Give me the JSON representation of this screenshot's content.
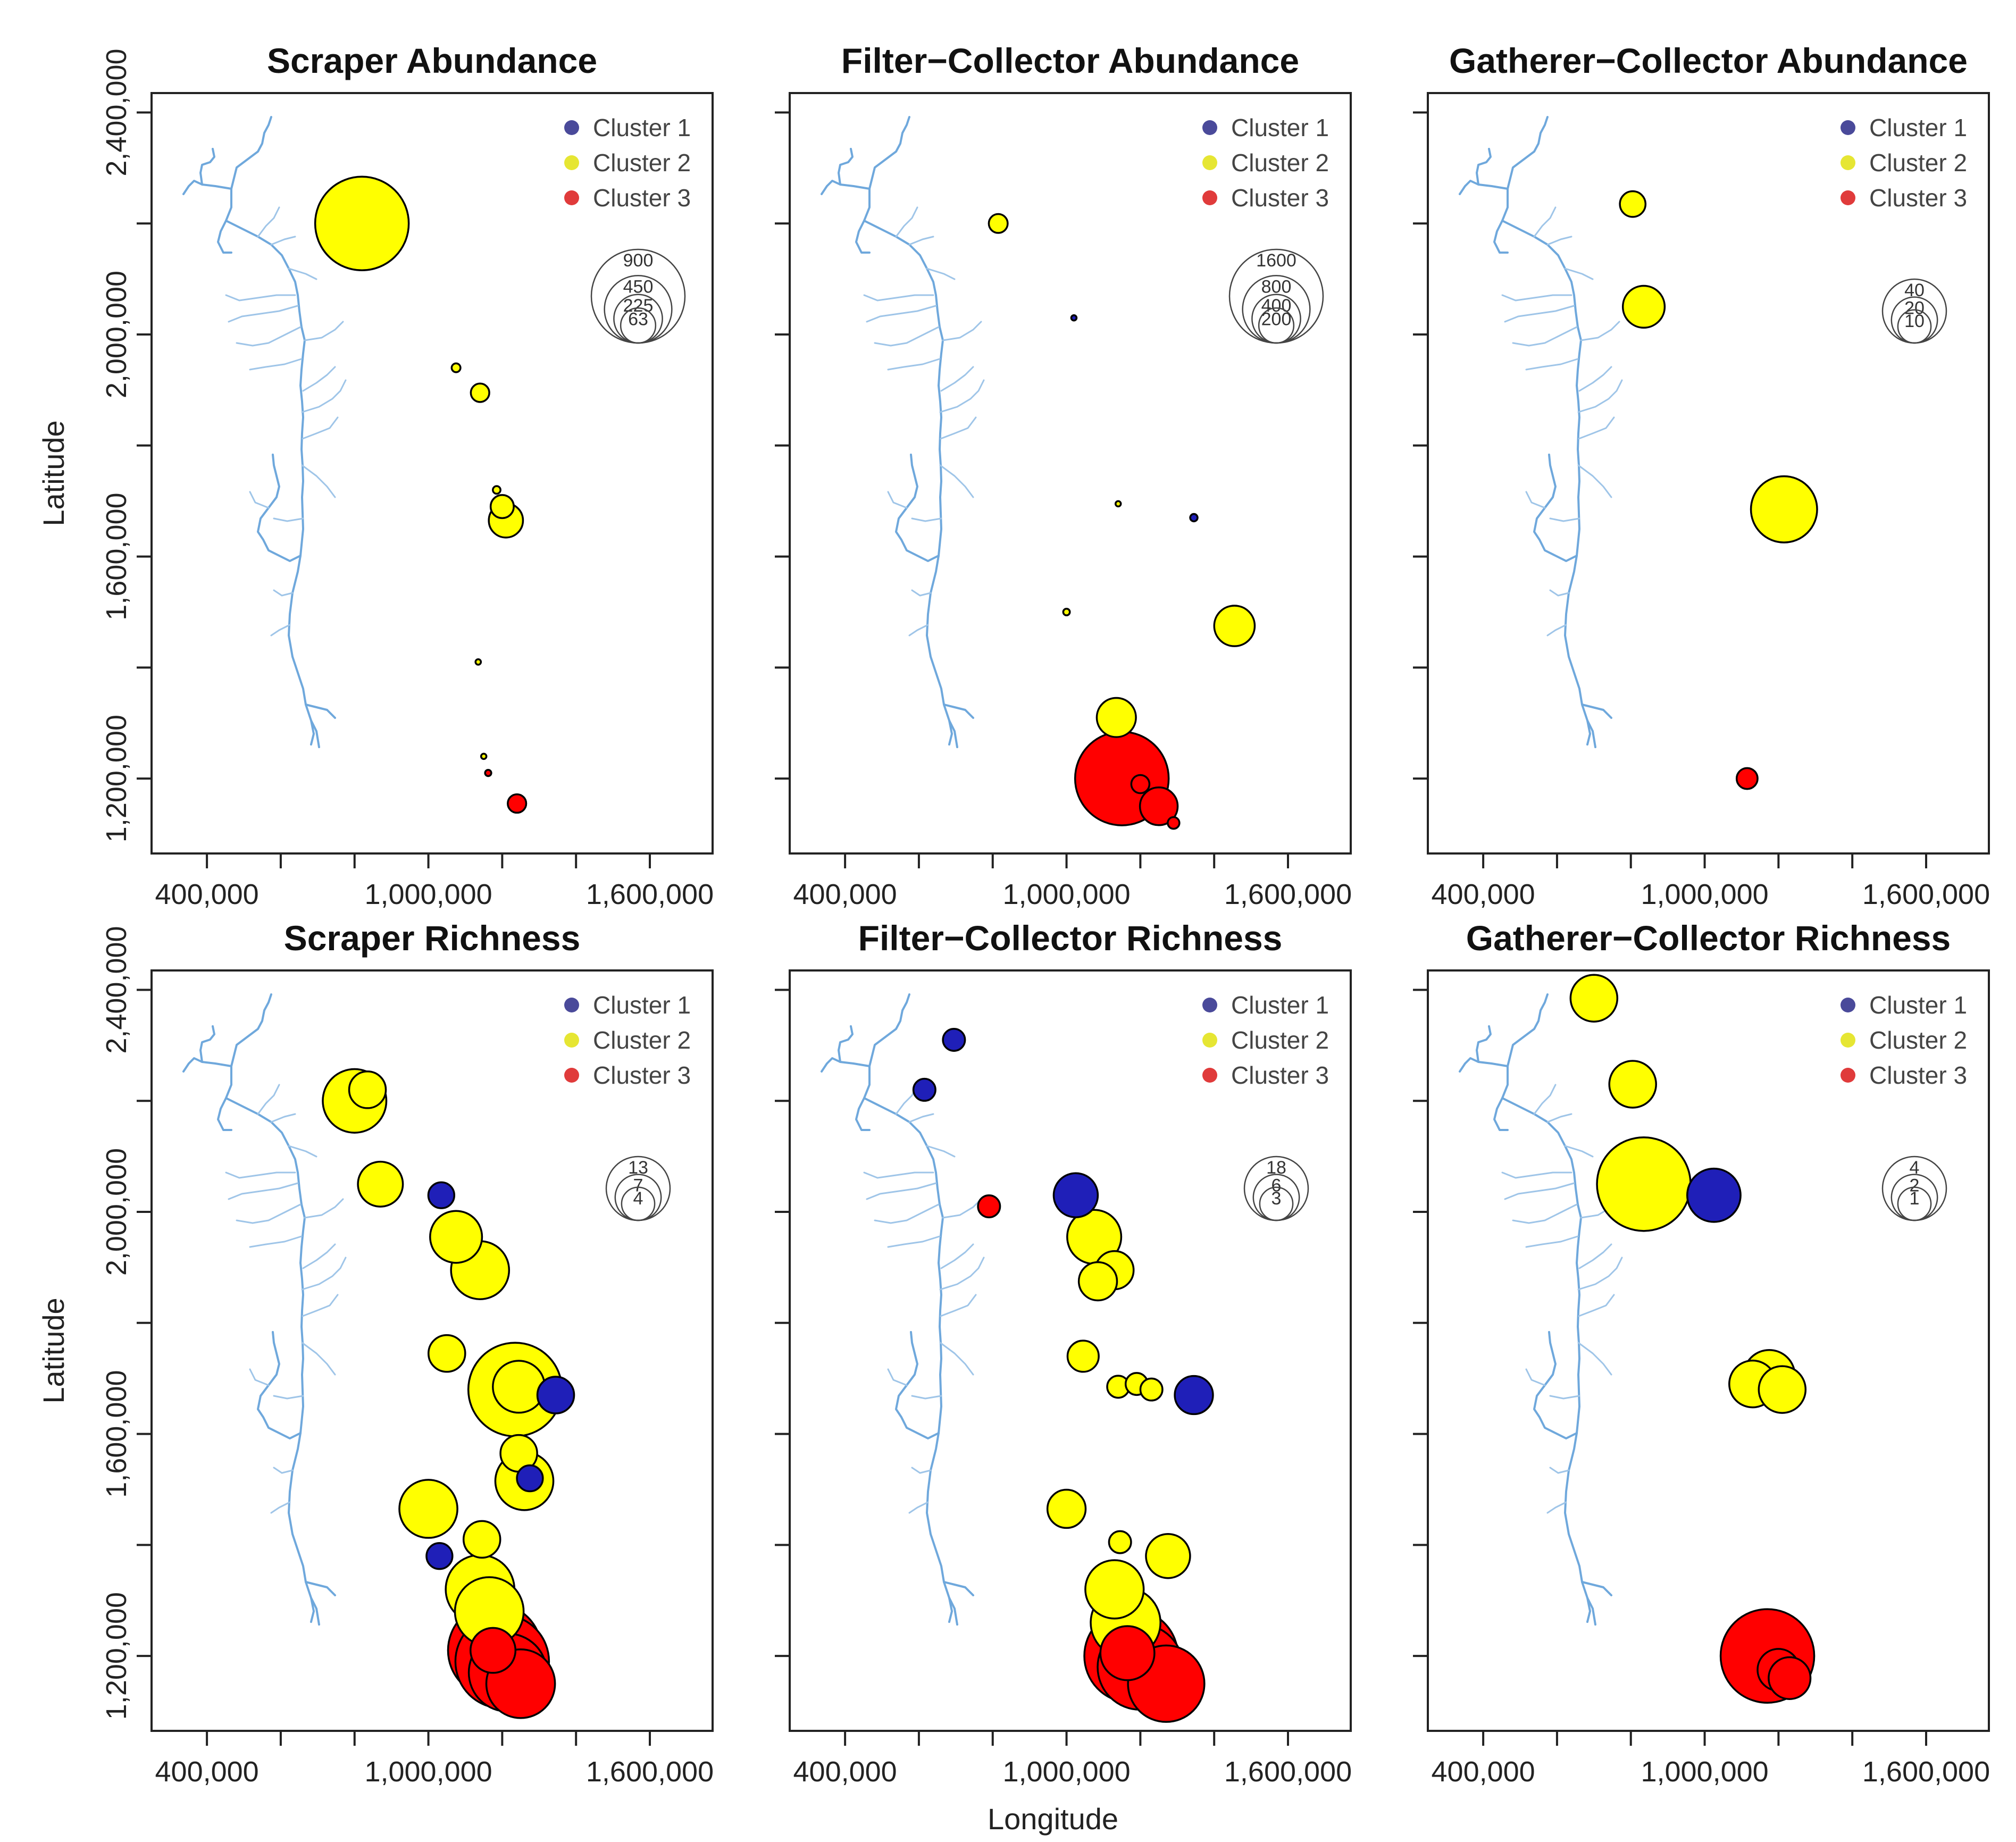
{
  "figure": {
    "xlabel": "Longitude",
    "ylabel": "Latitude"
  },
  "colors": {
    "cluster_1": "#1f1fb8",
    "cluster_2": "#ffff00",
    "cluster_3": "#ff0000",
    "legend_cluster_1": "#4a4a9a",
    "legend_cluster_2": "#e6e633",
    "legend_cluster_3": "#e03b3b",
    "river": "#6fa8dc"
  },
  "chart_data": [
    {
      "type": "scatter",
      "title": "Scraper Abundance",
      "xlabel": "",
      "ylabel": "Latitude",
      "xlim": [
        250000,
        1770000
      ],
      "ylim": [
        1065000,
        2435000
      ],
      "x_ticks": [
        "400,000",
        "1,000,000",
        "1,600,000"
      ],
      "y_ticks": [
        "1,200,000",
        "1,600,000",
        "2,000,000",
        "2,400,000"
      ],
      "legend": [
        "Cluster 1",
        "Cluster 2",
        "Cluster 3"
      ],
      "size_legend": [
        "900",
        "450",
        "225",
        "63"
      ],
      "size_max": 900,
      "points": [
        {
          "x": 820000,
          "y": 2200000,
          "size": 900,
          "cluster": 2
        },
        {
          "x": 1075000,
          "y": 1940000,
          "size": 8,
          "cluster": 2
        },
        {
          "x": 1140000,
          "y": 1895000,
          "size": 35,
          "cluster": 2
        },
        {
          "x": 1185000,
          "y": 1720000,
          "size": 6,
          "cluster": 2
        },
        {
          "x": 1200000,
          "y": 1690000,
          "size": 55,
          "cluster": 2
        },
        {
          "x": 1210000,
          "y": 1665000,
          "size": 120,
          "cluster": 2
        },
        {
          "x": 1135000,
          "y": 1410000,
          "size": 3,
          "cluster": 2
        },
        {
          "x": 1150000,
          "y": 1240000,
          "size": 2,
          "cluster": 2
        },
        {
          "x": 1162000,
          "y": 1210000,
          "size": 4,
          "cluster": 3
        },
        {
          "x": 1240000,
          "y": 1155000,
          "size": 35,
          "cluster": 3
        }
      ]
    },
    {
      "type": "scatter",
      "title": "Filter−Collector Abundance",
      "xlabel": "",
      "ylabel": "",
      "xlim": [
        250000,
        1770000
      ],
      "ylim": [
        1065000,
        2435000
      ],
      "x_ticks": [
        "400,000",
        "1,000,000",
        "1,600,000"
      ],
      "y_ticks": [],
      "legend": [
        "Cluster 1",
        "Cluster 2",
        "Cluster 3"
      ],
      "size_legend": [
        "1600",
        "800",
        "400",
        "200"
      ],
      "size_max": 1600,
      "points": [
        {
          "x": 815000,
          "y": 2200000,
          "size": 65,
          "cluster": 2
        },
        {
          "x": 1020000,
          "y": 2030000,
          "size": 4,
          "cluster": 1
        },
        {
          "x": 1345000,
          "y": 1670000,
          "size": 10,
          "cluster": 1
        },
        {
          "x": 1140000,
          "y": 1695000,
          "size": 3,
          "cluster": 2
        },
        {
          "x": 1000000,
          "y": 1500000,
          "size": 8,
          "cluster": 2
        },
        {
          "x": 1455000,
          "y": 1475000,
          "size": 300,
          "cluster": 2
        },
        {
          "x": 1135000,
          "y": 1310000,
          "size": 280,
          "cluster": 2
        },
        {
          "x": 1150000,
          "y": 1200000,
          "size": 1600,
          "cluster": 3
        },
        {
          "x": 1200000,
          "y": 1190000,
          "size": 60,
          "cluster": 3
        },
        {
          "x": 1250000,
          "y": 1150000,
          "size": 260,
          "cluster": 3
        },
        {
          "x": 1290000,
          "y": 1120000,
          "size": 25,
          "cluster": 3
        }
      ]
    },
    {
      "type": "scatter",
      "title": "Gatherer−Collector Abundance",
      "xlabel": "",
      "ylabel": "",
      "xlim": [
        250000,
        1770000
      ],
      "ylim": [
        1065000,
        2435000
      ],
      "x_ticks": [
        "400,000",
        "1,000,000",
        "1,600,000"
      ],
      "y_ticks": [],
      "legend": [
        "Cluster 1",
        "Cluster 2",
        "Cluster 3"
      ],
      "size_legend": [
        "40",
        "20",
        "10"
      ],
      "size_max": 40,
      "points": [
        {
          "x": 805000,
          "y": 2235000,
          "size": 3,
          "cluster": 2
        },
        {
          "x": 835000,
          "y": 2050000,
          "size": 8,
          "cluster": 2
        },
        {
          "x": 1215000,
          "y": 1685000,
          "size": 20,
          "cluster": 2
        },
        {
          "x": 1115000,
          "y": 1200000,
          "size": 2,
          "cluster": 3
        }
      ]
    },
    {
      "type": "scatter",
      "title": "Scraper Richness",
      "xlabel": "",
      "ylabel": "Latitude",
      "xlim": [
        250000,
        1770000
      ],
      "ylim": [
        1065000,
        2435000
      ],
      "x_ticks": [
        "400,000",
        "1,000,000",
        "1,600,000"
      ],
      "y_ticks": [
        "1,200,000",
        "1,600,000",
        "2,000,000",
        "2,400,000"
      ],
      "legend": [
        "Cluster 1",
        "Cluster 2",
        "Cluster 3"
      ],
      "size_legend": [
        "13",
        "7",
        "4"
      ],
      "size_max": 13,
      "points": [
        {
          "x": 800000,
          "y": 2200000,
          "size": 6,
          "cluster": 2
        },
        {
          "x": 835000,
          "y": 2220000,
          "size": 2,
          "cluster": 2
        },
        {
          "x": 870000,
          "y": 2050000,
          "size": 3,
          "cluster": 2
        },
        {
          "x": 1035000,
          "y": 2030000,
          "size": 1,
          "cluster": 1
        },
        {
          "x": 1075000,
          "y": 1955000,
          "size": 4,
          "cluster": 2
        },
        {
          "x": 1140000,
          "y": 1895000,
          "size": 5,
          "cluster": 2
        },
        {
          "x": 1050000,
          "y": 1745000,
          "size": 2,
          "cluster": 2
        },
        {
          "x": 1235000,
          "y": 1680000,
          "size": 13,
          "cluster": 2
        },
        {
          "x": 1245000,
          "y": 1685000,
          "size": 4,
          "cluster": 2
        },
        {
          "x": 1345000,
          "y": 1670000,
          "size": 2,
          "cluster": 1
        },
        {
          "x": 1245000,
          "y": 1565000,
          "size": 2,
          "cluster": 2
        },
        {
          "x": 1260000,
          "y": 1515000,
          "size": 5,
          "cluster": 2
        },
        {
          "x": 1275000,
          "y": 1520000,
          "size": 1,
          "cluster": 1
        },
        {
          "x": 1000000,
          "y": 1465000,
          "size": 5,
          "cluster": 2
        },
        {
          "x": 1145000,
          "y": 1410000,
          "size": 2,
          "cluster": 2
        },
        {
          "x": 1030000,
          "y": 1380000,
          "size": 1,
          "cluster": 1
        },
        {
          "x": 1140000,
          "y": 1320000,
          "size": 7,
          "cluster": 2
        },
        {
          "x": 1165000,
          "y": 1280000,
          "size": 7,
          "cluster": 2
        },
        {
          "x": 1180000,
          "y": 1210000,
          "size": 13,
          "cluster": 3
        },
        {
          "x": 1200000,
          "y": 1190000,
          "size": 13,
          "cluster": 3
        },
        {
          "x": 1215000,
          "y": 1170000,
          "size": 9,
          "cluster": 3
        },
        {
          "x": 1250000,
          "y": 1150000,
          "size": 7,
          "cluster": 3
        },
        {
          "x": 1175000,
          "y": 1210000,
          "size": 3,
          "cluster": 3
        }
      ]
    },
    {
      "type": "scatter",
      "title": "Filter−Collector Richness",
      "xlabel": "",
      "ylabel": "",
      "xlim": [
        250000,
        1770000
      ],
      "ylim": [
        1065000,
        2435000
      ],
      "x_ticks": [
        "400,000",
        "1,000,000",
        "1,600,000"
      ],
      "y_ticks": [],
      "legend": [
        "Cluster 1",
        "Cluster 2",
        "Cluster 3"
      ],
      "size_legend": [
        "18",
        "6",
        "3"
      ],
      "size_max": 18,
      "points": [
        {
          "x": 615000,
          "y": 2220000,
          "size": 1,
          "cluster": 1
        },
        {
          "x": 695000,
          "y": 2310000,
          "size": 1,
          "cluster": 1
        },
        {
          "x": 790000,
          "y": 2010000,
          "size": 1,
          "cluster": 3
        },
        {
          "x": 1025000,
          "y": 2030000,
          "size": 4,
          "cluster": 1
        },
        {
          "x": 1075000,
          "y": 1955000,
          "size": 6,
          "cluster": 2
        },
        {
          "x": 1130000,
          "y": 1895000,
          "size": 3,
          "cluster": 2
        },
        {
          "x": 1085000,
          "y": 1875000,
          "size": 3,
          "cluster": 2
        },
        {
          "x": 1045000,
          "y": 1740000,
          "size": 2,
          "cluster": 2
        },
        {
          "x": 1140000,
          "y": 1685000,
          "size": 1,
          "cluster": 2
        },
        {
          "x": 1190000,
          "y": 1690000,
          "size": 1,
          "cluster": 2
        },
        {
          "x": 1230000,
          "y": 1680000,
          "size": 1,
          "cluster": 2
        },
        {
          "x": 1345000,
          "y": 1670000,
          "size": 3,
          "cluster": 1
        },
        {
          "x": 1000000,
          "y": 1465000,
          "size": 3,
          "cluster": 2
        },
        {
          "x": 1145000,
          "y": 1405000,
          "size": 1,
          "cluster": 2
        },
        {
          "x": 1275000,
          "y": 1380000,
          "size": 4,
          "cluster": 2
        },
        {
          "x": 1130000,
          "y": 1320000,
          "size": 7,
          "cluster": 2
        },
        {
          "x": 1160000,
          "y": 1260000,
          "size": 10,
          "cluster": 2
        },
        {
          "x": 1175000,
          "y": 1200000,
          "size": 18,
          "cluster": 3
        },
        {
          "x": 1200000,
          "y": 1180000,
          "size": 15,
          "cluster": 3
        },
        {
          "x": 1270000,
          "y": 1150000,
          "size": 12,
          "cluster": 3
        },
        {
          "x": 1165000,
          "y": 1205000,
          "size": 6,
          "cluster": 3
        }
      ]
    },
    {
      "type": "scatter",
      "title": "Gatherer−Collector Richness",
      "xlabel": "",
      "ylabel": "",
      "xlim": [
        250000,
        1770000
      ],
      "ylim": [
        1065000,
        2435000
      ],
      "x_ticks": [
        "400,000",
        "1,000,000",
        "1,600,000"
      ],
      "y_ticks": [],
      "legend": [
        "Cluster 1",
        "Cluster 2",
        "Cluster 3"
      ],
      "size_legend": [
        "4",
        "2",
        "1"
      ],
      "size_max": 4,
      "points": [
        {
          "x": 700000,
          "y": 2385000,
          "size": 1,
          "cluster": 2
        },
        {
          "x": 805000,
          "y": 2230000,
          "size": 1,
          "cluster": 2
        },
        {
          "x": 835000,
          "y": 2050000,
          "size": 4,
          "cluster": 2
        },
        {
          "x": 1025000,
          "y": 2030000,
          "size": 1.3,
          "cluster": 1
        },
        {
          "x": 1130000,
          "y": 1690000,
          "size": 1,
          "cluster": 2
        },
        {
          "x": 1175000,
          "y": 1705000,
          "size": 1.2,
          "cluster": 2
        },
        {
          "x": 1210000,
          "y": 1680000,
          "size": 1,
          "cluster": 2
        },
        {
          "x": 1170000,
          "y": 1200000,
          "size": 4,
          "cluster": 3
        },
        {
          "x": 1200000,
          "y": 1175000,
          "size": 0.8,
          "cluster": 3
        },
        {
          "x": 1230000,
          "y": 1160000,
          "size": 0.8,
          "cluster": 3
        }
      ]
    }
  ]
}
